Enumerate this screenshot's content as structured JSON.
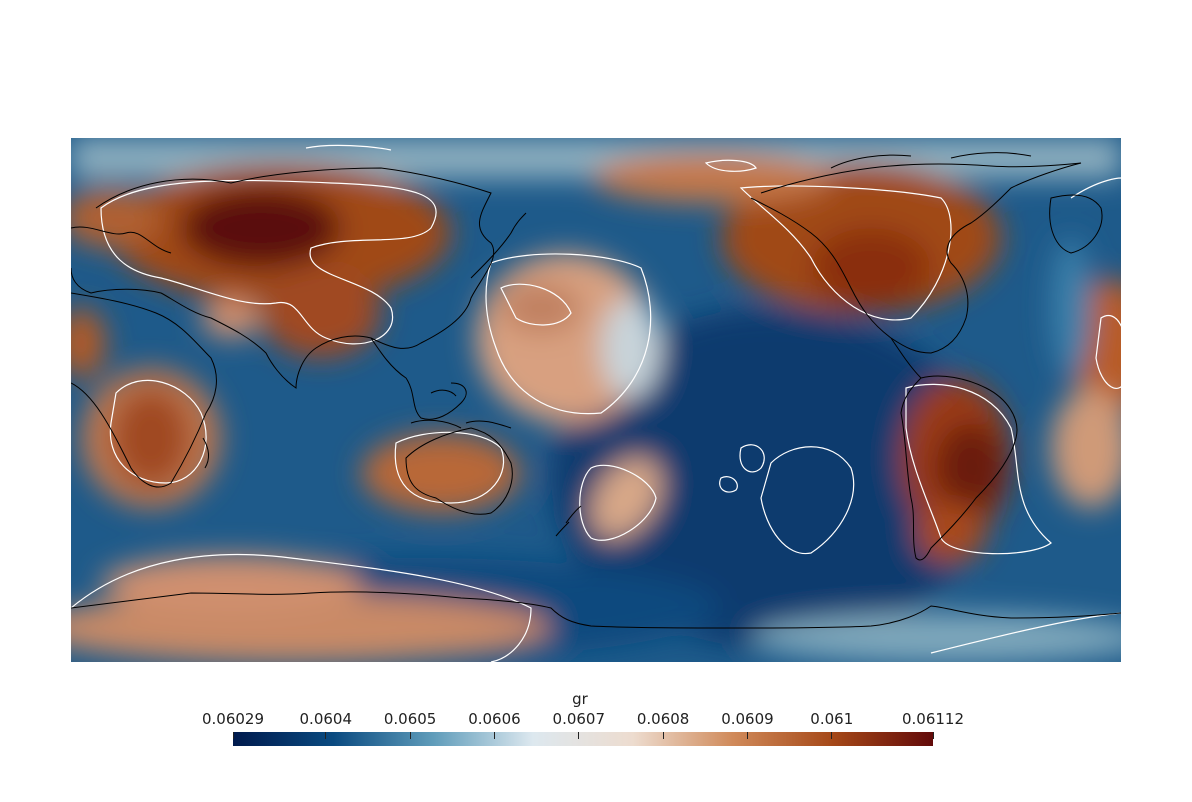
{
  "colormap": {
    "name": "vik",
    "stops": [
      "#001a4d",
      "#0a4a80",
      "#5f9cba",
      "#dde8ef",
      "#eddccf",
      "#d08a5a",
      "#a54818",
      "#620a0a"
    ]
  },
  "colorbar": {
    "title": "gr",
    "min": 0.06029,
    "max": 0.06112,
    "tick_labels": [
      "0.06029",
      "0.0604",
      "0.0605",
      "0.0606",
      "0.0607",
      "0.0608",
      "0.0609",
      "0.061",
      "0.06112"
    ],
    "tick_values": [
      0.06029,
      0.0604,
      0.0605,
      0.0606,
      0.0607,
      0.0608,
      0.0609,
      0.061,
      0.06112
    ]
  },
  "map": {
    "projection": "equirectangular",
    "central_longitude": 180,
    "contour_color": "#ffffff",
    "coastline_color": "#000000"
  }
}
